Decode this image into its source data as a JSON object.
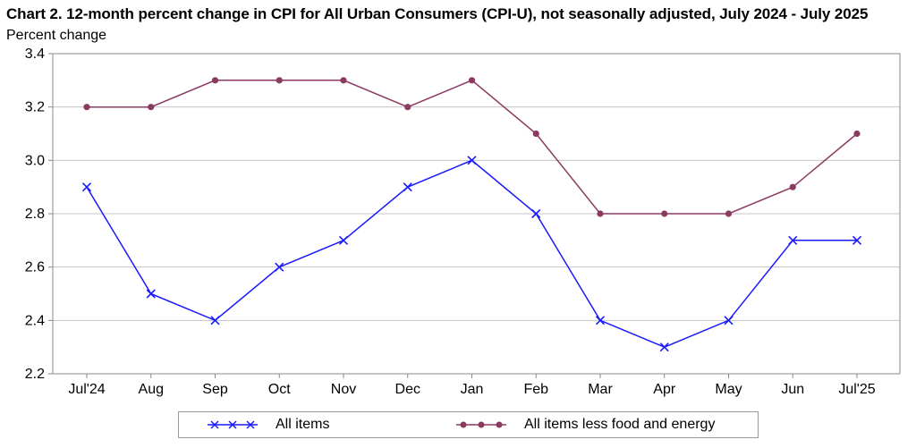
{
  "chart_data": {
    "type": "line",
    "title": "Chart 2. 12-month percent change in CPI for All Urban Consumers (CPI-U), not seasonally adjusted, July 2024 - July 2025",
    "ylabel": "Percent change",
    "xlabel": "",
    "categories": [
      "Jul'24",
      "Aug",
      "Sep",
      "Oct",
      "Nov",
      "Dec",
      "Jan",
      "Feb",
      "Mar",
      "Apr",
      "May",
      "Jun",
      "Jul'25"
    ],
    "ylim": [
      2.2,
      3.4
    ],
    "yticks": [
      "2.2",
      "2.4",
      "2.6",
      "2.8",
      "3.0",
      "3.2",
      "3.4"
    ],
    "grid": true,
    "legend_position": "bottom",
    "series": [
      {
        "name": "All items",
        "color": "#1a1aff",
        "marker": "x",
        "values": [
          2.9,
          2.5,
          2.4,
          2.6,
          2.7,
          2.9,
          3.0,
          2.8,
          2.4,
          2.3,
          2.4,
          2.7,
          2.7
        ]
      },
      {
        "name": "All items less food and energy",
        "color": "#8b3a62",
        "marker": "circle",
        "values": [
          3.2,
          3.2,
          3.3,
          3.3,
          3.3,
          3.2,
          3.3,
          3.1,
          2.8,
          2.8,
          2.8,
          2.9,
          3.1
        ]
      }
    ]
  }
}
